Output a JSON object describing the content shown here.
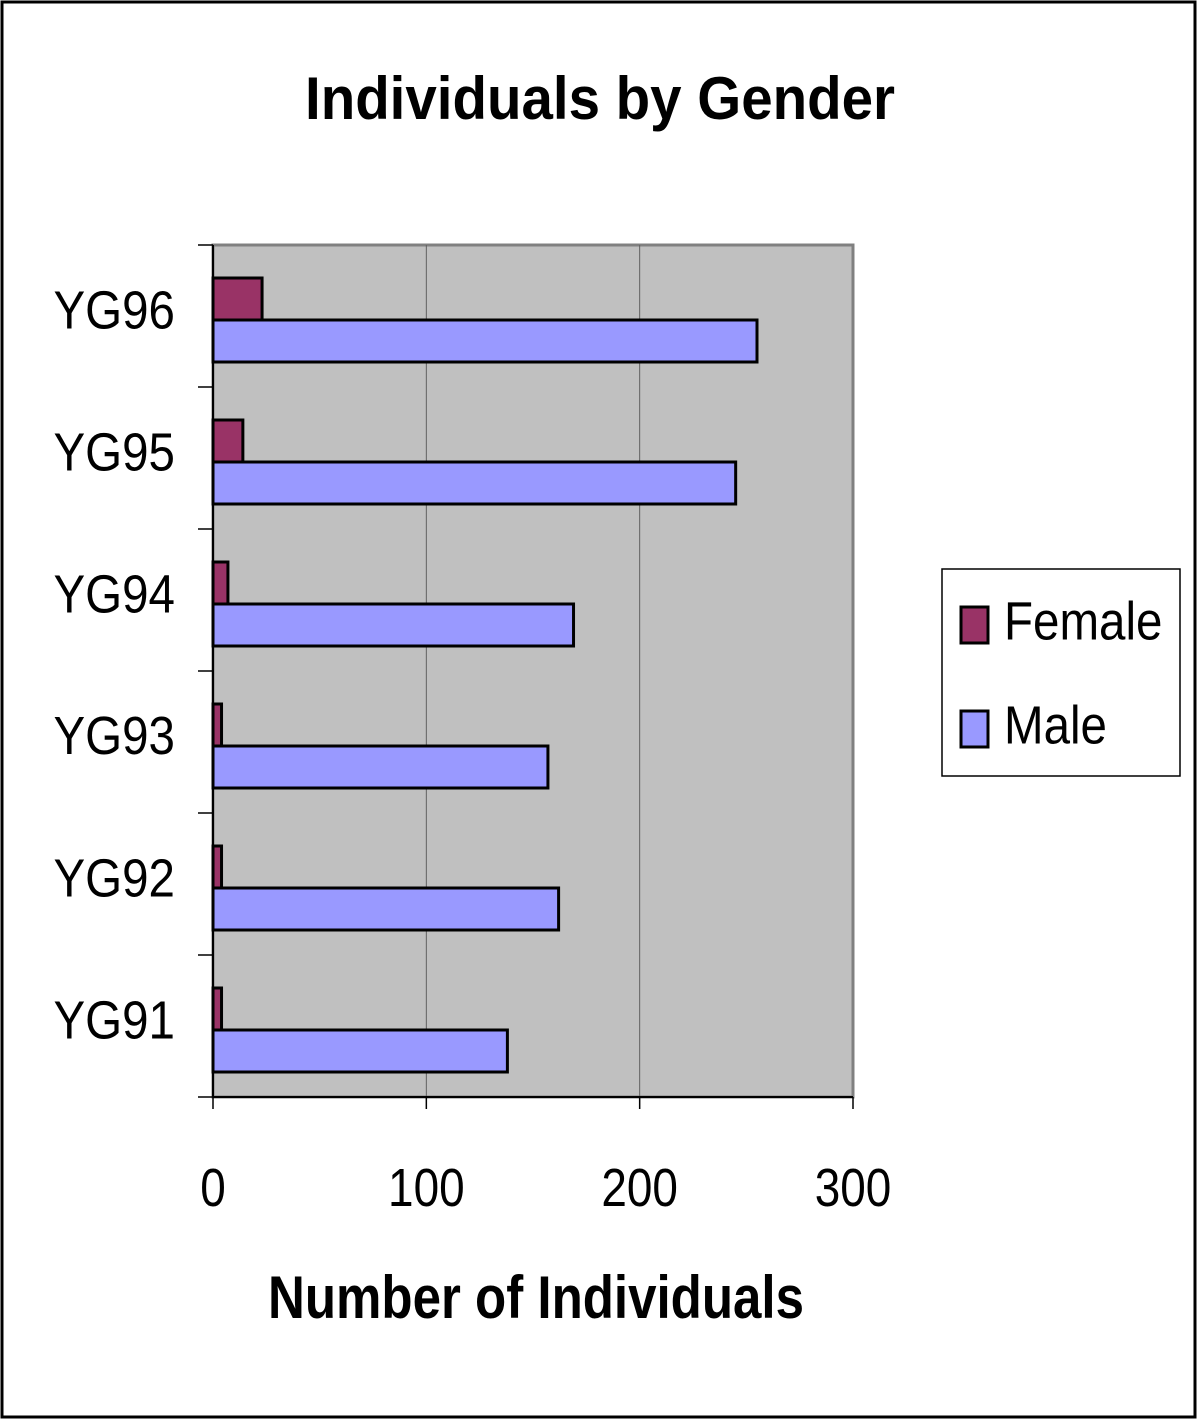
{
  "chart_data": {
    "type": "hbar",
    "title": "Individuals by Gender",
    "xlabel": "Number of Individuals",
    "categories": [
      "YG91",
      "YG92",
      "YG93",
      "YG94",
      "YG95",
      "YG96"
    ],
    "series": [
      {
        "name": "Female",
        "color": "#993366",
        "values": [
          4,
          4,
          4,
          7,
          14,
          23
        ]
      },
      {
        "name": "Male",
        "color": "#9999ff",
        "values": [
          138,
          162,
          157,
          169,
          245,
          255
        ]
      }
    ],
    "xlim": [
      0,
      300
    ],
    "xticks": [
      0,
      100,
      200,
      300
    ],
    "grid": true,
    "legend": "right"
  }
}
